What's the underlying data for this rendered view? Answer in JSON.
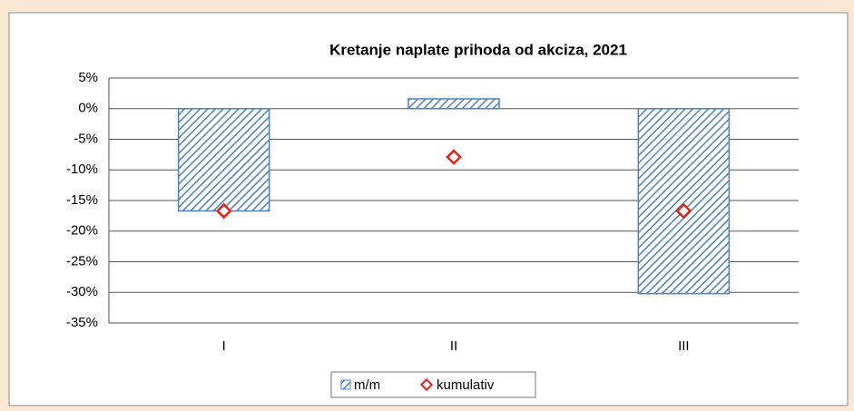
{
  "chart_data": {
    "type": "bar",
    "title": "Kretanje naplate prihoda od akciza, 2021",
    "categories": [
      "I",
      "II",
      "III"
    ],
    "series": [
      {
        "name": "m/m",
        "type": "bar",
        "color": "#4f81bd",
        "values": [
          -16.7,
          1.6,
          -30.2
        ]
      },
      {
        "name": "kumulativ",
        "type": "marker",
        "color": "#e2231a",
        "values": [
          -16.7,
          -7.9,
          -16.7
        ]
      }
    ],
    "ylim": [
      -35,
      5
    ],
    "yticks": [
      {
        "value": 5,
        "label": "5%"
      },
      {
        "value": 0,
        "label": "0%"
      },
      {
        "value": -5,
        "label": "-5%"
      },
      {
        "value": -10,
        "label": "-10%"
      },
      {
        "value": -15,
        "label": "-15%"
      },
      {
        "value": -20,
        "label": "-20%"
      },
      {
        "value": -25,
        "label": "-25%"
      },
      {
        "value": -30,
        "label": "-30%"
      },
      {
        "value": -35,
        "label": "-35%"
      }
    ],
    "grid": true
  }
}
